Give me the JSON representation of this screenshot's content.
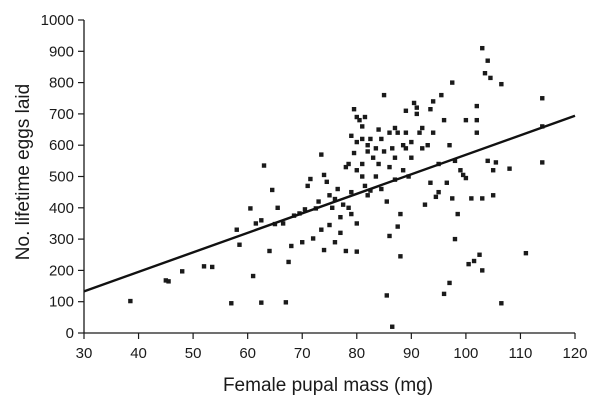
{
  "chart_data": {
    "type": "scatter",
    "title": "",
    "xlabel": "Female pupal mass (mg)",
    "ylabel": "No. lifetime eggs laid",
    "xlim": [
      30,
      120
    ],
    "ylim": [
      0,
      1000
    ],
    "x_ticks": [
      "30",
      "40",
      "50",
      "60",
      "70",
      "80",
      "90",
      "100",
      "110",
      "120"
    ],
    "y_ticks": [
      "0",
      "100",
      "200",
      "300",
      "400",
      "500",
      "600",
      "700",
      "800",
      "900",
      "1000"
    ],
    "grid": false,
    "legend": "none",
    "marker_color": "#1a1a1a",
    "trendline": {
      "type": "linear",
      "x": [
        30,
        120
      ],
      "y": [
        133,
        694
      ],
      "color": "#111111"
    },
    "series": [
      {
        "points": [
          [
            38.5,
            102
          ],
          [
            45,
            168
          ],
          [
            45.5,
            165
          ],
          [
            48,
            197
          ],
          [
            52,
            213
          ],
          [
            53.5,
            211
          ],
          [
            57,
            95
          ],
          [
            58,
            330
          ],
          [
            58.5,
            282
          ],
          [
            60.5,
            398
          ],
          [
            61,
            182
          ],
          [
            61.5,
            350
          ],
          [
            62.5,
            360
          ],
          [
            62.5,
            97
          ],
          [
            63,
            535
          ],
          [
            64,
            262
          ],
          [
            64.5,
            457
          ],
          [
            65,
            348
          ],
          [
            65.5,
            400
          ],
          [
            66.5,
            350
          ],
          [
            67,
            98
          ],
          [
            67.5,
            227
          ],
          [
            68,
            278
          ],
          [
            68.5,
            375
          ],
          [
            69.5,
            382
          ],
          [
            70,
            290
          ],
          [
            70.5,
            395
          ],
          [
            71,
            470
          ],
          [
            71.5,
            492
          ],
          [
            72,
            302
          ],
          [
            72.5,
            398
          ],
          [
            73,
            420
          ],
          [
            73.5,
            570
          ],
          [
            73.5,
            330
          ],
          [
            74,
            505
          ],
          [
            74,
            265
          ],
          [
            74.5,
            483
          ],
          [
            75,
            440
          ],
          [
            75,
            345
          ],
          [
            75.5,
            400
          ],
          [
            76,
            290
          ],
          [
            76,
            428
          ],
          [
            76.5,
            460
          ],
          [
            77,
            370
          ],
          [
            77,
            320
          ],
          [
            77.5,
            410
          ],
          [
            78,
            530
          ],
          [
            78,
            262
          ],
          [
            78.5,
            540
          ],
          [
            78.5,
            400
          ],
          [
            79,
            630
          ],
          [
            79,
            450
          ],
          [
            79,
            380
          ],
          [
            79.5,
            715
          ],
          [
            79.5,
            575
          ],
          [
            80,
            690
          ],
          [
            80,
            610
          ],
          [
            80,
            520
          ],
          [
            80,
            350
          ],
          [
            80,
            260
          ],
          [
            80.5,
            680
          ],
          [
            81,
            660
          ],
          [
            81,
            620
          ],
          [
            81,
            540
          ],
          [
            81,
            500
          ],
          [
            81.5,
            690
          ],
          [
            81.5,
            470
          ],
          [
            82,
            580
          ],
          [
            82,
            440
          ],
          [
            82,
            600
          ],
          [
            82.5,
            620
          ],
          [
            82.5,
            455
          ],
          [
            83,
            560
          ],
          [
            83.5,
            590
          ],
          [
            83.5,
            500
          ],
          [
            84,
            650
          ],
          [
            84,
            540
          ],
          [
            84.5,
            620
          ],
          [
            84.5,
            460
          ],
          [
            85,
            760
          ],
          [
            85,
            580
          ],
          [
            85.5,
            120
          ],
          [
            85.5,
            420
          ],
          [
            86,
            640
          ],
          [
            86,
            530
          ],
          [
            86,
            310
          ],
          [
            86.5,
            20
          ],
          [
            86.5,
            590
          ],
          [
            87,
            560
          ],
          [
            87,
            490
          ],
          [
            87,
            655
          ],
          [
            87.5,
            640
          ],
          [
            87.5,
            340
          ],
          [
            88,
            380
          ],
          [
            88,
            245
          ],
          [
            88.5,
            600
          ],
          [
            88.5,
            520
          ],
          [
            89,
            710
          ],
          [
            89,
            640
          ],
          [
            89,
            590
          ],
          [
            89.5,
            500
          ],
          [
            90,
            560
          ],
          [
            90,
            610
          ],
          [
            90.5,
            735
          ],
          [
            91,
            720
          ],
          [
            91,
            700
          ],
          [
            91.5,
            640
          ],
          [
            92,
            655
          ],
          [
            92,
            590
          ],
          [
            92.5,
            410
          ],
          [
            93,
            600
          ],
          [
            93.5,
            715
          ],
          [
            93.5,
            480
          ],
          [
            94,
            740
          ],
          [
            94,
            640
          ],
          [
            94.5,
            435
          ],
          [
            95,
            450
          ],
          [
            95,
            540
          ],
          [
            95.5,
            760
          ],
          [
            96,
            125
          ],
          [
            96,
            680
          ],
          [
            96.5,
            480
          ],
          [
            97,
            160
          ],
          [
            97,
            600
          ],
          [
            97.5,
            800
          ],
          [
            97.5,
            430
          ],
          [
            98,
            300
          ],
          [
            98,
            550
          ],
          [
            98.5,
            380
          ],
          [
            99,
            520
          ],
          [
            99.5,
            505
          ],
          [
            100,
            680
          ],
          [
            100,
            495
          ],
          [
            100.5,
            220
          ],
          [
            101,
            430
          ],
          [
            101.5,
            230
          ],
          [
            102,
            725
          ],
          [
            102,
            680
          ],
          [
            102,
            640
          ],
          [
            102.5,
            250
          ],
          [
            103,
            910
          ],
          [
            103,
            430
          ],
          [
            103,
            200
          ],
          [
            103.5,
            830
          ],
          [
            104,
            870
          ],
          [
            104,
            550
          ],
          [
            104.5,
            815
          ],
          [
            105,
            520
          ],
          [
            105,
            440
          ],
          [
            105.5,
            545
          ],
          [
            106.5,
            795
          ],
          [
            106.5,
            95
          ],
          [
            108,
            525
          ],
          [
            111,
            255
          ],
          [
            114,
            750
          ],
          [
            114,
            660
          ],
          [
            114,
            545
          ]
        ]
      }
    ]
  }
}
